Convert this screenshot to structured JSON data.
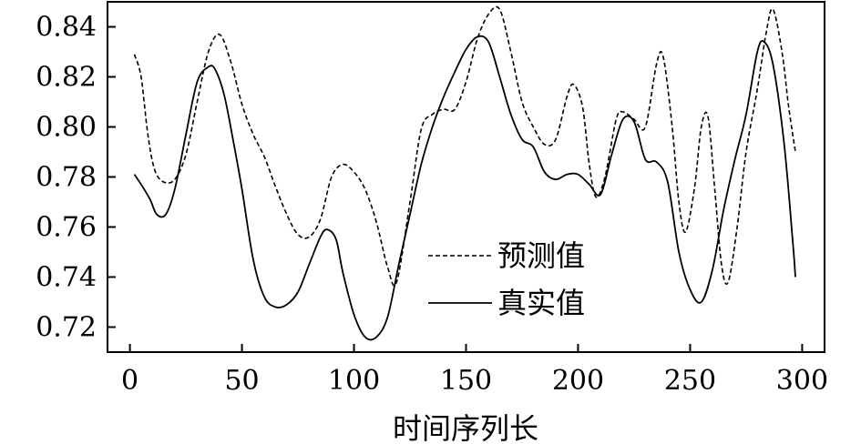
{
  "chart_data": {
    "type": "line",
    "title": "",
    "xlabel": "时间序列长",
    "ylabel": "",
    "xlim": [
      -10,
      310
    ],
    "ylim": [
      0.71,
      0.85
    ],
    "x_ticks": [
      "0",
      "50",
      "100",
      "150",
      "200",
      "250",
      "300"
    ],
    "y_ticks": [
      "0.72",
      "0.74",
      "0.76",
      "0.78",
      "0.80",
      "0.82",
      "0.84"
    ],
    "grid": false,
    "legend_position": "center-right",
    "series": [
      {
        "name": "预测值",
        "style": "dashed",
        "color": "#000000",
        "points": [
          [
            2,
            0.829
          ],
          [
            5,
            0.82
          ],
          [
            8,
            0.797
          ],
          [
            11,
            0.783
          ],
          [
            15,
            0.778
          ],
          [
            20,
            0.779
          ],
          [
            25,
            0.789
          ],
          [
            30,
            0.81
          ],
          [
            35,
            0.83
          ],
          [
            40,
            0.837
          ],
          [
            45,
            0.826
          ],
          [
            50,
            0.809
          ],
          [
            55,
            0.797
          ],
          [
            60,
            0.788
          ],
          [
            65,
            0.776
          ],
          [
            70,
            0.765
          ],
          [
            75,
            0.757
          ],
          [
            80,
            0.756
          ],
          [
            85,
            0.763
          ],
          [
            90,
            0.78
          ],
          [
            95,
            0.785
          ],
          [
            100,
            0.782
          ],
          [
            105,
            0.775
          ],
          [
            110,
            0.762
          ],
          [
            115,
            0.744
          ],
          [
            119,
            0.738
          ],
          [
            125,
            0.77
          ],
          [
            130,
            0.799
          ],
          [
            135,
            0.805
          ],
          [
            140,
            0.807
          ],
          [
            145,
            0.807
          ],
          [
            150,
            0.818
          ],
          [
            155,
            0.835
          ],
          [
            160,
            0.845
          ],
          [
            165,
            0.847
          ],
          [
            170,
            0.83
          ],
          [
            175,
            0.81
          ],
          [
            180,
            0.8
          ],
          [
            185,
            0.793
          ],
          [
            190,
            0.795
          ],
          [
            195,
            0.812
          ],
          [
            198,
            0.817
          ],
          [
            202,
            0.808
          ],
          [
            205,
            0.785
          ],
          [
            208,
            0.772
          ],
          [
            212,
            0.78
          ],
          [
            217,
            0.803
          ],
          [
            220,
            0.806
          ],
          [
            225,
            0.803
          ],
          [
            230,
            0.8
          ],
          [
            235,
            0.825
          ],
          [
            238,
            0.828
          ],
          [
            242,
            0.8
          ],
          [
            245,
            0.77
          ],
          [
            248,
            0.758
          ],
          [
            252,
            0.776
          ],
          [
            255,
            0.8
          ],
          [
            258,
            0.804
          ],
          [
            261,
            0.775
          ],
          [
            264,
            0.745
          ],
          [
            267,
            0.738
          ],
          [
            271,
            0.76
          ],
          [
            275,
            0.79
          ],
          [
            280,
            0.815
          ],
          [
            284,
            0.838
          ],
          [
            287,
            0.847
          ],
          [
            291,
            0.83
          ],
          [
            294,
            0.808
          ],
          [
            297,
            0.79
          ]
        ]
      },
      {
        "name": "真实值",
        "style": "solid",
        "color": "#000000",
        "points": [
          [
            2,
            0.781
          ],
          [
            5,
            0.777
          ],
          [
            9,
            0.771
          ],
          [
            12,
            0.765
          ],
          [
            16,
            0.765
          ],
          [
            20,
            0.775
          ],
          [
            25,
            0.797
          ],
          [
            30,
            0.818
          ],
          [
            35,
            0.824
          ],
          [
            38,
            0.823
          ],
          [
            42,
            0.813
          ],
          [
            46,
            0.795
          ],
          [
            50,
            0.775
          ],
          [
            55,
            0.747
          ],
          [
            60,
            0.732
          ],
          [
            65,
            0.728
          ],
          [
            70,
            0.729
          ],
          [
            75,
            0.734
          ],
          [
            80,
            0.745
          ],
          [
            85,
            0.756
          ],
          [
            88,
            0.759
          ],
          [
            92,
            0.755
          ],
          [
            95,
            0.742
          ],
          [
            100,
            0.725
          ],
          [
            105,
            0.716
          ],
          [
            110,
            0.716
          ],
          [
            115,
            0.724
          ],
          [
            120,
            0.745
          ],
          [
            125,
            0.765
          ],
          [
            130,
            0.785
          ],
          [
            135,
            0.8
          ],
          [
            140,
            0.812
          ],
          [
            145,
            0.822
          ],
          [
            150,
            0.831
          ],
          [
            155,
            0.836
          ],
          [
            160,
            0.834
          ],
          [
            165,
            0.82
          ],
          [
            170,
            0.805
          ],
          [
            175,
            0.795
          ],
          [
            180,
            0.792
          ],
          [
            185,
            0.782
          ],
          [
            190,
            0.779
          ],
          [
            195,
            0.781
          ],
          [
            200,
            0.781
          ],
          [
            205,
            0.777
          ],
          [
            210,
            0.773
          ],
          [
            215,
            0.789
          ],
          [
            220,
            0.803
          ],
          [
            225,
            0.802
          ],
          [
            230,
            0.787
          ],
          [
            235,
            0.786
          ],
          [
            240,
            0.778
          ],
          [
            245,
            0.75
          ],
          [
            250,
            0.735
          ],
          [
            255,
            0.73
          ],
          [
            260,
            0.743
          ],
          [
            265,
            0.767
          ],
          [
            270,
            0.787
          ],
          [
            275,
            0.805
          ],
          [
            280,
            0.83
          ],
          [
            283,
            0.834
          ],
          [
            287,
            0.825
          ],
          [
            292,
            0.793
          ],
          [
            296,
            0.752
          ],
          [
            297,
            0.74
          ]
        ]
      }
    ]
  }
}
